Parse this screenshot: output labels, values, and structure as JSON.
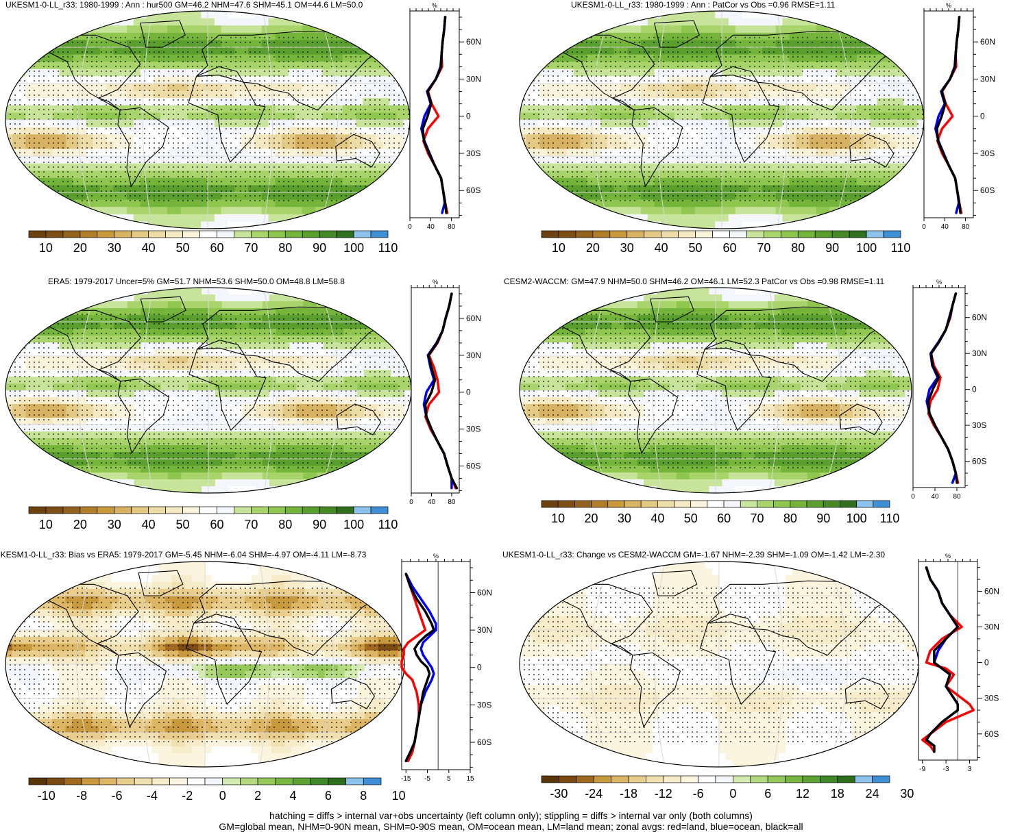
{
  "footer": {
    "line1": "hatching = diffs > internal var+obs uncertainty (left column only); stippling = diffs > internal var only (both columns)",
    "line2": "GM=global mean, NHM=0-90N mean, SHM=0-90S mean, OM=ocean mean, LM=land mean; zonal avgs: red=land, blue=ocean, black=all"
  },
  "colors": {
    "land": "#ff0000",
    "ocean": "#0000ff",
    "all": "#000000",
    "abs_palette": [
      "#6b4210",
      "#7d4f17",
      "#93621f",
      "#b07e2a",
      "#c89a3b",
      "#d7b262",
      "#e4c985",
      "#eedca6",
      "#f5e9c3",
      "#faf3dc",
      "#ffffff",
      "#f4f6fb",
      "#c8e49a",
      "#a9d46c",
      "#8fc64f",
      "#74b43a",
      "#5a9f2d",
      "#468a27",
      "#2f6f1d",
      "#8cc3ec",
      "#3f8fd6"
    ],
    "diff_palette": [
      "#5a3508",
      "#7a4a12",
      "#a0691f",
      "#c99a3d",
      "#dcb565",
      "#e8cd8d",
      "#f1e0b0",
      "#f7ecc9",
      "#fbf4df",
      "#ffffff",
      "#f3f5fb",
      "#d3eab0",
      "#b4da80",
      "#94c95a",
      "#78b642",
      "#5ea233",
      "#3f8828",
      "#2d6e1c",
      "#8cc3ec",
      "#3f8fd6"
    ]
  },
  "chart_data": [
    {
      "type": "heatmap",
      "title": "UKESM1-0-LL_r33: 1980-1999 : Ann : hur500 GM=46.2 NHM=47.6 SHM=45.1 OM=44.6 LM=50.0",
      "colorbar_labels": [
        "10",
        "20",
        "30",
        "40",
        "50",
        "60",
        "70",
        "80",
        "90",
        "100",
        "110"
      ],
      "zonal_mean": {
        "unit_label": "%",
        "xlim": [
          0,
          95
        ],
        "x_ticks": [
          "0",
          "40",
          "80"
        ],
        "lat_ticks": [
          "60N",
          "30N",
          "0",
          "30S",
          "60S"
        ],
        "lat_values": [
          60,
          30,
          0,
          -30,
          -60
        ],
        "lat": [
          80,
          70,
          60,
          50,
          40,
          30,
          20,
          10,
          0,
          -10,
          -20,
          -30,
          -40,
          -50,
          -60,
          -70,
          -78
        ],
        "series": [
          {
            "name": "red",
            "values": [
              68,
              66,
              63,
              61,
              62,
              50,
              35,
              42,
              55,
              35,
              26,
              35,
              48,
              60,
              64,
              68,
              72
            ]
          },
          {
            "name": "blue",
            "values": [
              68,
              66,
              63,
              61,
              59,
              50,
              33,
              40,
              28,
              22,
              28,
              38,
              48,
              60,
              64,
              67,
              62
            ]
          },
          {
            "name": "black",
            "values": [
              68,
              66,
              63,
              61,
              60,
              50,
              34,
              41,
              34,
              25,
              27,
              37,
              48,
              60,
              64,
              68,
              70
            ]
          }
        ]
      }
    },
    {
      "type": "heatmap",
      "title": "UKESM1-0-LL_r33: 1980-1999 : Ann : PatCor vs Obs =0.96 RMSE=1.11",
      "colorbar_labels": [
        "10",
        "20",
        "30",
        "40",
        "50",
        "60",
        "70",
        "80",
        "90",
        "100",
        "110"
      ],
      "zonal_mean": {
        "unit_label": "%",
        "xlim": [
          0,
          95
        ],
        "x_ticks": [
          "0",
          "40",
          "80"
        ],
        "lat_ticks": [
          "60N",
          "30N",
          "0",
          "30S",
          "60S"
        ],
        "lat_values": [
          60,
          30,
          0,
          -30,
          -60
        ],
        "lat": [
          80,
          70,
          60,
          50,
          40,
          30,
          20,
          10,
          0,
          -10,
          -20,
          -30,
          -40,
          -50,
          -60,
          -70,
          -78
        ],
        "series": [
          {
            "name": "red",
            "values": [
              68,
              66,
              63,
              61,
              62,
              50,
              35,
              42,
              55,
              35,
              26,
              35,
              48,
              60,
              64,
              68,
              72
            ]
          },
          {
            "name": "blue",
            "values": [
              68,
              66,
              63,
              61,
              59,
              50,
              33,
              40,
              28,
              22,
              28,
              38,
              48,
              60,
              64,
              67,
              62
            ]
          },
          {
            "name": "black",
            "values": [
              68,
              66,
              63,
              61,
              60,
              50,
              34,
              41,
              34,
              25,
              27,
              37,
              48,
              60,
              64,
              68,
              70
            ]
          }
        ]
      }
    },
    {
      "type": "heatmap",
      "title": "ERA5: 1979-2017 Uncer=5% GM=51.7 NHM=53.6 SHM=50.0 OM=48.8 LM=58.8",
      "colorbar_labels": [
        "10",
        "20",
        "30",
        "40",
        "50",
        "60",
        "70",
        "80",
        "90",
        "100",
        "110"
      ],
      "zonal_mean": {
        "unit_label": "%",
        "xlim": [
          0,
          95
        ],
        "x_ticks": [
          "0",
          "40",
          "80"
        ],
        "lat_ticks": [
          "60N",
          "30N",
          "0",
          "30S",
          "60S"
        ],
        "lat_values": [
          60,
          30,
          0,
          -30,
          -60
        ],
        "lat": [
          80,
          70,
          60,
          50,
          40,
          30,
          20,
          10,
          0,
          -10,
          -20,
          -30,
          -40,
          -50,
          -60,
          -70,
          -78
        ],
        "series": [
          {
            "name": "red",
            "values": [
              80,
              75,
              68,
              62,
              52,
              35,
              45,
              52,
              55,
              35,
              28,
              38,
              52,
              65,
              72,
              80,
              88
            ]
          },
          {
            "name": "blue",
            "values": [
              80,
              75,
              68,
              62,
              50,
              33,
              38,
              45,
              30,
              25,
              30,
              40,
              52,
              65,
              72,
              80,
              80
            ]
          },
          {
            "name": "black",
            "values": [
              80,
              75,
              68,
              62,
              51,
              34,
              40,
              47,
              40,
              28,
              30,
              40,
              52,
              65,
              72,
              80,
              90
            ]
          }
        ]
      }
    },
    {
      "type": "heatmap",
      "title": "CESM2-WACCM: GM=47.9 NHM=50.0 SHM=46.2 OM=46.1 LM=52.3 PatCor vs Obs =0.98 RMSE=1.11",
      "colorbar_labels": [
        "10",
        "20",
        "30",
        "40",
        "50",
        "60",
        "70",
        "80",
        "90",
        "100",
        "110"
      ],
      "zonal_mean": {
        "unit_label": "%",
        "xlim": [
          0,
          95
        ],
        "x_ticks": [
          "0",
          "40",
          "80"
        ],
        "lat_ticks": [
          "60N",
          "30N",
          "0",
          "30S",
          "60S"
        ],
        "lat_values": [
          60,
          30,
          0,
          -30,
          -60
        ],
        "lat": [
          80,
          70,
          60,
          50,
          40,
          30,
          20,
          10,
          0,
          -10,
          -20,
          -30,
          -40,
          -50,
          -60,
          -70,
          -78
        ],
        "series": [
          {
            "name": "red",
            "values": [
              78,
              72,
              68,
              60,
              48,
              33,
              38,
              50,
              45,
              32,
              28,
              38,
              52,
              64,
              72,
              78,
              82
            ]
          },
          {
            "name": "blue",
            "values": [
              78,
              72,
              66,
              60,
              47,
              32,
              35,
              45,
              30,
              25,
              30,
              40,
              52,
              64,
              72,
              78,
              72
            ]
          },
          {
            "name": "black",
            "values": [
              78,
              72,
              67,
              60,
              48,
              33,
              36,
              47,
              36,
              28,
              30,
              40,
              52,
              64,
              72,
              78,
              80
            ]
          }
        ]
      }
    },
    {
      "type": "heatmap",
      "title": "UKESM1-0-LL_r33: Bias vs ERA5: 1979-2017 GM=-5.45 NHM=-6.04 SHM=-4.97 OM=-4.11 LM=-8.73",
      "colorbar_labels": [
        "-10",
        "-8",
        "-6",
        "-4",
        "-2",
        "0",
        "2",
        "4",
        "6",
        "8",
        "10"
      ],
      "zonal_mean": {
        "unit_label": "%",
        "xlim": [
          -17,
          15
        ],
        "x_ticks": [
          "-15",
          "-5",
          "5",
          "15"
        ],
        "zero_line": 0,
        "lat_ticks": [
          "60N",
          "30N",
          "0",
          "30S",
          "60S"
        ],
        "lat_values": [
          60,
          30,
          0,
          -30,
          -60
        ],
        "lat": [
          75,
          65,
          55,
          45,
          35,
          30,
          25,
          20,
          15,
          10,
          5,
          0,
          -5,
          -10,
          -20,
          -30,
          -40,
          -50,
          -60,
          -68,
          -75
        ],
        "series": [
          {
            "name": "red",
            "values": [
              -15,
              -13,
              -11,
              -9,
              -7,
              -6,
              -10,
              -14,
              -16,
              -16,
              -17,
              -17,
              -15,
              -12,
              -10,
              -9,
              -9,
              -10,
              -11,
              -12,
              -14
            ]
          },
          {
            "name": "blue",
            "values": [
              -15,
              -12,
              -8,
              -4,
              -1,
              -1,
              -4,
              -7,
              -8,
              -7,
              -5,
              -3,
              -2,
              -3,
              -6,
              -8,
              -9,
              -10,
              -11,
              -13,
              -15
            ]
          },
          {
            "name": "black",
            "values": [
              -15,
              -13,
              -10,
              -6,
              -3,
              -2,
              -6,
              -9,
              -11,
              -10,
              -8,
              -5,
              -4,
              -5,
              -7,
              -8,
              -9,
              -10,
              -11,
              -13,
              -15
            ]
          }
        ]
      }
    },
    {
      "type": "heatmap",
      "title": "UKESM1-0-LL_r33: Change vs CESM2-WACCM GM=-1.67 NHM=-2.39 SHM=-1.09 OM=-1.42 LM=-2.30",
      "colorbar_labels": [
        "-30",
        "-24",
        "-18",
        "-12",
        "-6",
        "0",
        "6",
        "12",
        "18",
        "24",
        "30"
      ],
      "zonal_mean": {
        "unit_label": "%",
        "xlim": [
          -10,
          5
        ],
        "x_ticks": [
          "-9",
          "-3",
          "3"
        ],
        "zero_line": 0,
        "lat_ticks": [
          "60N",
          "30N",
          "0",
          "30S",
          "60S"
        ],
        "lat_values": [
          60,
          30,
          0,
          -30,
          -60
        ],
        "lat": [
          80,
          70,
          60,
          50,
          40,
          30,
          20,
          10,
          0,
          -5,
          -10,
          -20,
          -30,
          -35,
          -40,
          -50,
          -60,
          -65,
          -70,
          -75
        ],
        "series": [
          {
            "name": "red",
            "values": [
              -8,
              -7,
              -5,
              -4,
              -2,
              1,
              -4,
              -7,
              -8,
              -3,
              -1,
              -3,
              1,
              3,
              4,
              -3,
              -7,
              -9,
              -7,
              -6
            ]
          },
          {
            "name": "blue",
            "values": [
              -8,
              -7,
              -5,
              -4,
              -2,
              0,
              -3,
              -5,
              -6,
              -4,
              -2,
              -3,
              -1,
              0,
              0,
              -4,
              -7,
              -8,
              -6,
              -6
            ]
          },
          {
            "name": "black",
            "values": [
              -8,
              -7,
              -5,
              -4,
              -2,
              0,
              -3,
              -6,
              -6,
              -4,
              -2,
              -3,
              -1,
              0,
              0,
              -4,
              -7,
              -8,
              -6,
              -6
            ]
          }
        ]
      }
    }
  ]
}
